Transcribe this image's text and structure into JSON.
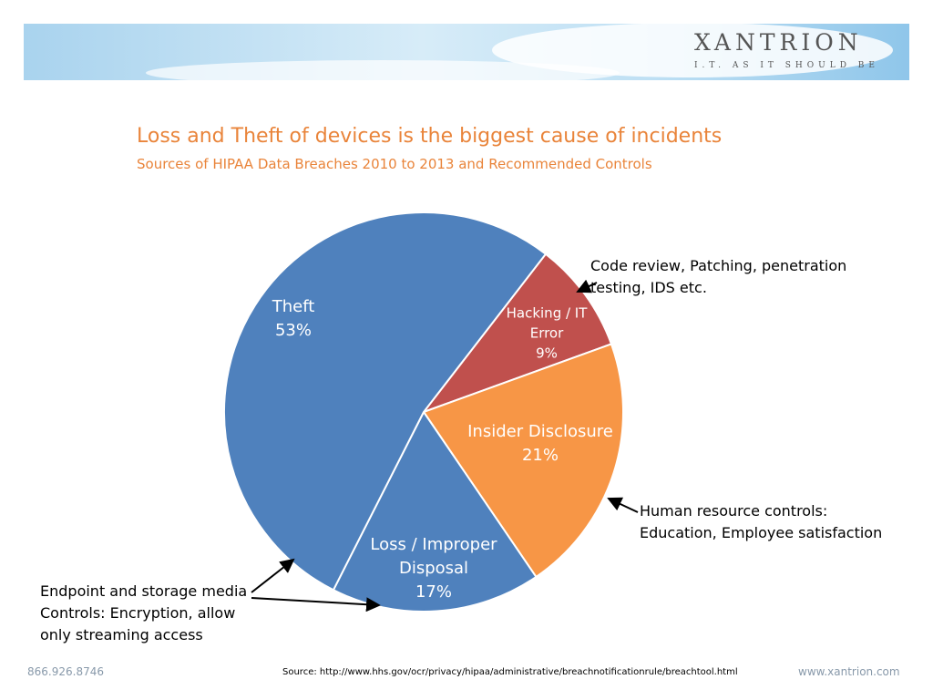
{
  "header": {
    "logo": "XANTRION",
    "tagline": "I.T. AS IT SHOULD BE"
  },
  "chart_data": {
    "type": "pie",
    "title": "Loss and Theft of devices is the biggest cause of incidents",
    "subtitle": "Sources of HIPAA Data Breaches 2010 to 2013 and Recommended Controls",
    "categories": [
      "Hacking / IT Error",
      "Insider Disclosure",
      "Loss / Improper Disposal",
      "Theft"
    ],
    "values": [
      9,
      21,
      17,
      53
    ],
    "value_labels": [
      "9%",
      "21%",
      "17%",
      "53%"
    ],
    "colors": [
      "#c0504d",
      "#f79646",
      "#4f81bd",
      "#4f81bd"
    ],
    "annotations": [
      {
        "text": "Code review, Patching, penetration testing, IDS etc."
      },
      {
        "text": "Human resource controls: Education, Employee satisfaction"
      },
      {
        "text": "Endpoint and storage media Controls: Encryption, allow only streaming access"
      }
    ]
  },
  "footer": {
    "phone": "866.926.8746",
    "source": "Source:  http://www.hhs.gov/ocr/privacy/hipaa/administrative/breachnotificationrule/breachtool.html",
    "website": "www.xantrion.com"
  }
}
